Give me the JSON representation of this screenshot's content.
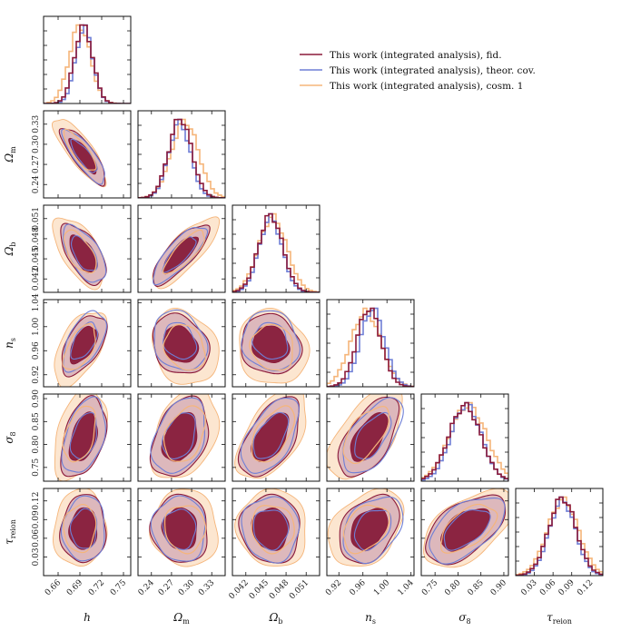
{
  "chart_data": {
    "type": "corner",
    "parameters": [
      {
        "key": "h",
        "label": "h",
        "label_sub": "",
        "range": [
          0.64,
          0.76
        ],
        "ticks": [
          0.66,
          0.69,
          0.72,
          0.75
        ],
        "tick_labels": [
          "0.66",
          "0.69",
          "0.72",
          "0.75"
        ]
      },
      {
        "key": "Om",
        "label": "Ω",
        "label_sub": "m",
        "range": [
          0.22,
          0.35
        ],
        "ticks": [
          0.24,
          0.27,
          0.3,
          0.33
        ],
        "tick_labels": [
          "0.24",
          "0.27",
          "0.30",
          "0.33"
        ]
      },
      {
        "key": "Ob",
        "label": "Ω",
        "label_sub": "b",
        "range": [
          0.04,
          0.053
        ],
        "ticks": [
          0.042,
          0.045,
          0.048,
          0.051
        ],
        "tick_labels": [
          "0.042",
          "0.045",
          "0.048",
          "0.051"
        ]
      },
      {
        "key": "ns",
        "label": "n",
        "label_sub": "s",
        "range": [
          0.9,
          1.045
        ],
        "ticks": [
          0.92,
          0.96,
          1.0,
          1.04
        ],
        "tick_labels": [
          "0.92",
          "0.96",
          "1.00",
          "1.04"
        ]
      },
      {
        "key": "s8",
        "label": "σ",
        "label_sub": "8",
        "range": [
          0.72,
          0.91
        ],
        "ticks": [
          0.75,
          0.8,
          0.85,
          0.9
        ],
        "tick_labels": [
          "0.75",
          "0.80",
          "0.85",
          "0.90"
        ]
      },
      {
        "key": "tau",
        "label": "τ",
        "label_sub": "reion",
        "range": [
          0.0,
          0.14
        ],
        "ticks": [
          0.03,
          0.06,
          0.09,
          0.12
        ],
        "tick_labels": [
          "0.03",
          "0.06",
          "0.09",
          "0.12"
        ]
      }
    ],
    "series": [
      {
        "name": "This work (integrated analysis), fid.",
        "color": "#8b1a3a",
        "fill_outer": "#d9b2b9",
        "fill_inner": "#8b2441",
        "means": [
          0.695,
          0.283,
          0.0457,
          0.97,
          0.815,
          0.075
        ],
        "sigmas": [
          0.0125,
          0.017,
          0.0018,
          0.02,
          0.035,
          0.022
        ]
      },
      {
        "name": "This work (integrated analysis), theor. cov.",
        "color": "#6f7fd6",
        "fill_outer": null,
        "fill_inner": null,
        "means": [
          0.696,
          0.282,
          0.0457,
          0.976,
          0.818,
          0.075
        ],
        "sigmas": [
          0.0118,
          0.016,
          0.0017,
          0.02,
          0.033,
          0.021
        ]
      },
      {
        "name": "This work (integrated analysis), cosm. 1",
        "color": "#f5b57a",
        "fill_outer": "#fbe2c8",
        "fill_inner": null,
        "means": [
          0.69,
          0.29,
          0.046,
          0.965,
          0.822,
          0.076
        ],
        "sigmas": [
          0.0145,
          0.02,
          0.0021,
          0.025,
          0.04,
          0.025
        ]
      }
    ],
    "correlations": {
      "h,Om": -0.82,
      "h,Ob": -0.6,
      "h,ns": 0.55,
      "h,s8": 0.4,
      "h,tau": 0.05,
      "Om,Ob": 0.8,
      "Om,ns": -0.2,
      "Om,s8": 0.35,
      "Om,tau": -0.05,
      "Ob,ns": -0.1,
      "Ob,s8": 0.55,
      "Ob,tau": -0.05,
      "ns,s8": 0.6,
      "ns,tau": 0.35,
      "s8,tau": 0.55
    }
  }
}
